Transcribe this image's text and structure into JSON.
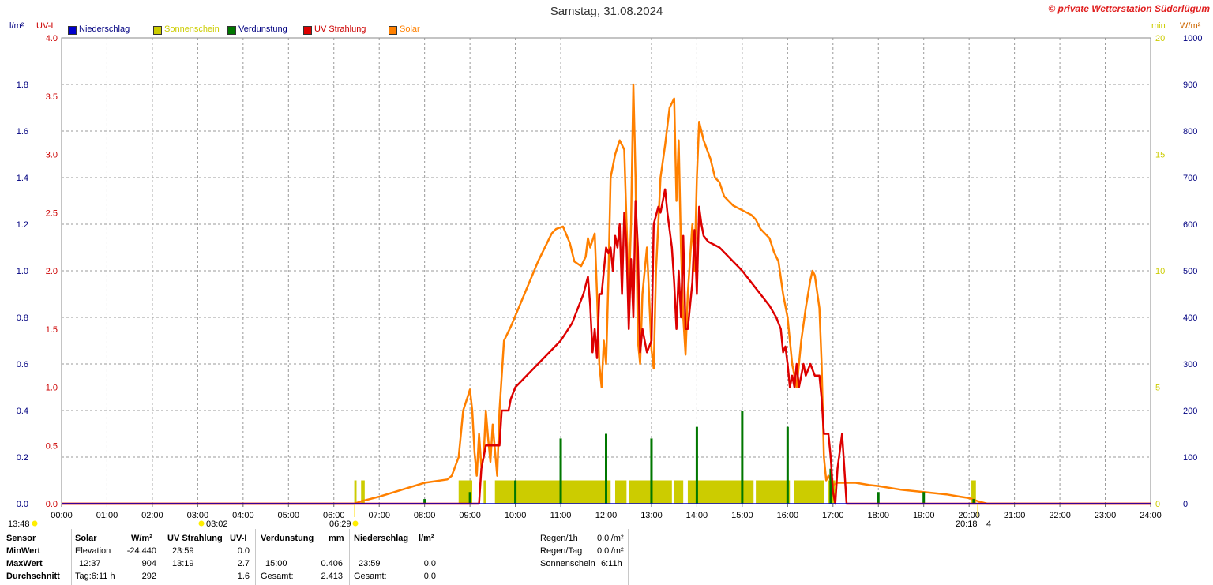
{
  "header": {
    "title": "Samstag, 31.08.2024",
    "copyright": "© private Wetterstation Süderlügum"
  },
  "axis_units": {
    "left_outer": "l/m²",
    "left_inner": "UV-I",
    "right_inner": "min",
    "right_outer": "W/m²"
  },
  "legend": [
    {
      "label": "Niederschlag",
      "color": "#0000cc",
      "text_color": "#000080"
    },
    {
      "label": "Sonnenschein",
      "color": "#cccc00",
      "text_color": "#cccc00"
    },
    {
      "label": "Verdunstung",
      "color": "#007700",
      "text_color": "#000080"
    },
    {
      "label": "UV Strahlung",
      "color": "#dd0000",
      "text_color": "#cc0000"
    },
    {
      "label": "Solar",
      "color": "#ff8000",
      "text_color": "#ff8000"
    }
  ],
  "markers": {
    "moon_left": "13:48",
    "moonset": "03:02",
    "sunrise": "06:29",
    "sunset": "20:18",
    "moon_phase": "4"
  },
  "chart_data": {
    "type": "line",
    "title": "Samstag, 31.08.2024",
    "x_ticks": [
      "00:00",
      "01:00",
      "02:00",
      "03:00",
      "04:00",
      "05:00",
      "06:00",
      "07:00",
      "08:00",
      "09:00",
      "10:00",
      "11:00",
      "12:00",
      "13:00",
      "14:00",
      "15:00",
      "16:00",
      "17:00",
      "18:00",
      "19:00",
      "20:00",
      "21:00",
      "22:00",
      "23:00",
      "24:00"
    ],
    "x_range_hours": [
      0,
      24
    ],
    "y_axes": {
      "rain": {
        "unit": "l/m²",
        "range": [
          0,
          2.0
        ],
        "ticks": [
          "0.0",
          "0.2",
          "0.4",
          "0.6",
          "0.8",
          "1.0",
          "1.2",
          "1.4",
          "1.6",
          "1.8"
        ],
        "color": "#000080"
      },
      "uv": {
        "unit": "UV-I",
        "range": [
          0,
          4.0
        ],
        "ticks": [
          "0.0",
          "0.5",
          "1.0",
          "1.5",
          "2.0",
          "2.5",
          "3.0",
          "3.5",
          "4.0"
        ],
        "color": "#cc0000"
      },
      "sun_min": {
        "unit": "min",
        "range": [
          0,
          20
        ],
        "ticks": [
          "0",
          "5",
          "10",
          "15",
          "20"
        ],
        "color": "#cccc00"
      },
      "solar": {
        "unit": "W/m²",
        "range": [
          0,
          1000
        ],
        "ticks": [
          "0",
          "100",
          "200",
          "300",
          "400",
          "500",
          "600",
          "700",
          "800",
          "900",
          "1000"
        ],
        "color": "#000080"
      }
    },
    "grid": true,
    "series": [
      {
        "name": "Solar",
        "axis": "solar",
        "color": "#ff8000",
        "points": [
          [
            0,
            0
          ],
          [
            6.45,
            0
          ],
          [
            6.6,
            5
          ],
          [
            7.0,
            15
          ],
          [
            7.5,
            30
          ],
          [
            8.0,
            45
          ],
          [
            8.5,
            52
          ],
          [
            8.6,
            60
          ],
          [
            8.75,
            100
          ],
          [
            8.85,
            200
          ],
          [
            8.95,
            230
          ],
          [
            9.0,
            245
          ],
          [
            9.05,
            200
          ],
          [
            9.1,
            110
          ],
          [
            9.15,
            60
          ],
          [
            9.2,
            150
          ],
          [
            9.25,
            80
          ],
          [
            9.3,
            100
          ],
          [
            9.35,
            200
          ],
          [
            9.4,
            140
          ],
          [
            9.45,
            90
          ],
          [
            9.5,
            170
          ],
          [
            9.6,
            60
          ],
          [
            9.65,
            200
          ],
          [
            9.75,
            350
          ],
          [
            9.9,
            380
          ],
          [
            10.2,
            450
          ],
          [
            10.5,
            520
          ],
          [
            10.8,
            580
          ],
          [
            10.9,
            590
          ],
          [
            11.05,
            595
          ],
          [
            11.2,
            560
          ],
          [
            11.3,
            520
          ],
          [
            11.45,
            510
          ],
          [
            11.55,
            530
          ],
          [
            11.6,
            570
          ],
          [
            11.65,
            550
          ],
          [
            11.75,
            580
          ],
          [
            11.8,
            450
          ],
          [
            11.85,
            300
          ],
          [
            11.9,
            250
          ],
          [
            11.95,
            350
          ],
          [
            12.0,
            300
          ],
          [
            12.05,
            480
          ],
          [
            12.1,
            700
          ],
          [
            12.2,
            750
          ],
          [
            12.3,
            780
          ],
          [
            12.4,
            760
          ],
          [
            12.45,
            600
          ],
          [
            12.5,
            450
          ],
          [
            12.55,
            600
          ],
          [
            12.6,
            900
          ],
          [
            12.65,
            700
          ],
          [
            12.7,
            350
          ],
          [
            12.75,
            300
          ],
          [
            12.8,
            450
          ],
          [
            12.9,
            550
          ],
          [
            13.0,
            330
          ],
          [
            13.05,
            290
          ],
          [
            13.1,
            500
          ],
          [
            13.2,
            700
          ],
          [
            13.3,
            770
          ],
          [
            13.4,
            850
          ],
          [
            13.5,
            870
          ],
          [
            13.55,
            650
          ],
          [
            13.6,
            780
          ],
          [
            13.65,
            550
          ],
          [
            13.7,
            400
          ],
          [
            13.75,
            320
          ],
          [
            13.8,
            450
          ],
          [
            13.9,
            600
          ],
          [
            13.95,
            500
          ],
          [
            14.0,
            700
          ],
          [
            14.05,
            820
          ],
          [
            14.15,
            780
          ],
          [
            14.3,
            740
          ],
          [
            14.4,
            700
          ],
          [
            14.5,
            690
          ],
          [
            14.6,
            660
          ],
          [
            14.7,
            650
          ],
          [
            14.8,
            640
          ],
          [
            15.0,
            630
          ],
          [
            15.2,
            620
          ],
          [
            15.3,
            610
          ],
          [
            15.4,
            590
          ],
          [
            15.5,
            580
          ],
          [
            15.6,
            570
          ],
          [
            15.7,
            540
          ],
          [
            15.8,
            520
          ],
          [
            15.9,
            450
          ],
          [
            16.0,
            400
          ],
          [
            16.1,
            300
          ],
          [
            16.2,
            250
          ],
          [
            16.3,
            350
          ],
          [
            16.4,
            420
          ],
          [
            16.5,
            480
          ],
          [
            16.55,
            500
          ],
          [
            16.6,
            490
          ],
          [
            16.7,
            420
          ],
          [
            16.75,
            300
          ],
          [
            16.8,
            100
          ],
          [
            16.85,
            50
          ],
          [
            16.9,
            60
          ],
          [
            17.0,
            40
          ],
          [
            17.1,
            45
          ],
          [
            17.5,
            45
          ],
          [
            17.8,
            40
          ],
          [
            18.0,
            38
          ],
          [
            18.5,
            30
          ],
          [
            19.0,
            25
          ],
          [
            19.5,
            20
          ],
          [
            19.8,
            15
          ],
          [
            20.0,
            12
          ],
          [
            20.2,
            5
          ],
          [
            20.4,
            0
          ],
          [
            24,
            0
          ]
        ]
      },
      {
        "name": "UV Strahlung",
        "axis": "uv",
        "color": "#dd0000",
        "points": [
          [
            0,
            0
          ],
          [
            9.2,
            0
          ],
          [
            9.25,
            0.3
          ],
          [
            9.35,
            0.5
          ],
          [
            9.65,
            0.5
          ],
          [
            9.7,
            0.8
          ],
          [
            9.85,
            0.8
          ],
          [
            9.9,
            0.9
          ],
          [
            10.0,
            1.0
          ],
          [
            10.25,
            1.1
          ],
          [
            10.5,
            1.2
          ],
          [
            10.75,
            1.3
          ],
          [
            11.0,
            1.4
          ],
          [
            11.25,
            1.55
          ],
          [
            11.4,
            1.7
          ],
          [
            11.5,
            1.8
          ],
          [
            11.6,
            1.95
          ],
          [
            11.65,
            1.7
          ],
          [
            11.7,
            1.3
          ],
          [
            11.75,
            1.5
          ],
          [
            11.8,
            1.25
          ],
          [
            11.85,
            1.8
          ],
          [
            11.9,
            1.8
          ],
          [
            12.0,
            2.2
          ],
          [
            12.05,
            2.15
          ],
          [
            12.1,
            2.2
          ],
          [
            12.15,
            2.0
          ],
          [
            12.2,
            2.3
          ],
          [
            12.25,
            2.2
          ],
          [
            12.3,
            2.4
          ],
          [
            12.35,
            1.8
          ],
          [
            12.4,
            2.5
          ],
          [
            12.45,
            2.2
          ],
          [
            12.5,
            1.5
          ],
          [
            12.55,
            2.1
          ],
          [
            12.6,
            1.6
          ],
          [
            12.65,
            2.6
          ],
          [
            12.7,
            2.2
          ],
          [
            12.75,
            1.3
          ],
          [
            12.8,
            1.5
          ],
          [
            12.9,
            1.3
          ],
          [
            13.0,
            1.4
          ],
          [
            13.05,
            2.4
          ],
          [
            13.15,
            2.55
          ],
          [
            13.2,
            2.5
          ],
          [
            13.3,
            2.7
          ],
          [
            13.35,
            2.5
          ],
          [
            13.45,
            2.2
          ],
          [
            13.5,
            1.9
          ],
          [
            13.55,
            1.5
          ],
          [
            13.6,
            2.0
          ],
          [
            13.65,
            1.6
          ],
          [
            13.7,
            2.3
          ],
          [
            13.75,
            1.5
          ],
          [
            13.8,
            1.5
          ],
          [
            13.9,
            1.9
          ],
          [
            13.95,
            2.35
          ],
          [
            14.0,
            1.8
          ],
          [
            14.05,
            2.55
          ],
          [
            14.1,
            2.4
          ],
          [
            14.15,
            2.3
          ],
          [
            14.25,
            2.25
          ],
          [
            14.5,
            2.2
          ],
          [
            14.75,
            2.1
          ],
          [
            15.0,
            2.0
          ],
          [
            15.2,
            1.9
          ],
          [
            15.4,
            1.8
          ],
          [
            15.5,
            1.75
          ],
          [
            15.6,
            1.7
          ],
          [
            15.75,
            1.6
          ],
          [
            15.85,
            1.5
          ],
          [
            15.9,
            1.3
          ],
          [
            15.95,
            1.35
          ],
          [
            16.0,
            1.2
          ],
          [
            16.05,
            1.0
          ],
          [
            16.1,
            1.1
          ],
          [
            16.15,
            1.0
          ],
          [
            16.2,
            1.2
          ],
          [
            16.25,
            1.0
          ],
          [
            16.3,
            1.1
          ],
          [
            16.35,
            1.2
          ],
          [
            16.4,
            1.1
          ],
          [
            16.5,
            1.2
          ],
          [
            16.6,
            1.1
          ],
          [
            16.7,
            1.1
          ],
          [
            16.75,
            0.9
          ],
          [
            16.8,
            0.6
          ],
          [
            16.9,
            0.6
          ],
          [
            16.95,
            0.4
          ],
          [
            17.0,
            0.1
          ],
          [
            17.05,
            0.0
          ],
          [
            17.1,
            0.3
          ],
          [
            17.2,
            0.6
          ],
          [
            17.25,
            0.3
          ],
          [
            17.3,
            0.0
          ],
          [
            24,
            0
          ]
        ]
      }
    ],
    "bars": [
      {
        "name": "Sonnenschein",
        "axis": "sun_min",
        "color": "#cccc00",
        "intervals": [
          [
            6.45,
            6.5
          ],
          [
            6.6,
            6.68
          ],
          [
            8.75,
            9.05
          ],
          [
            9.3,
            9.35
          ],
          [
            9.55,
            12.1
          ],
          [
            12.2,
            12.45
          ],
          [
            12.5,
            13.45
          ],
          [
            13.5,
            13.7
          ],
          [
            13.8,
            15.25
          ],
          [
            15.3,
            16.05
          ],
          [
            16.15,
            16.8
          ],
          [
            16.9,
            17.05
          ],
          [
            20.05,
            20.15
          ]
        ],
        "values": [
          1,
          1,
          1,
          1,
          1,
          1,
          1,
          1,
          1,
          1,
          1,
          1,
          1
        ]
      },
      {
        "name": "Verdunstung",
        "axis": "rain",
        "color": "#007700",
        "spikes": [
          [
            8.0,
            0.02
          ],
          [
            9.0,
            0.05
          ],
          [
            10.0,
            0.1
          ],
          [
            11.0,
            0.28
          ],
          [
            12.0,
            0.3
          ],
          [
            13.0,
            0.28
          ],
          [
            14.0,
            0.33
          ],
          [
            15.0,
            0.4
          ],
          [
            16.0,
            0.33
          ],
          [
            16.95,
            0.15
          ],
          [
            18.0,
            0.05
          ],
          [
            19.0,
            0.05
          ],
          [
            20.1,
            0.02
          ]
        ]
      },
      {
        "name": "Niederschlag",
        "axis": "rain",
        "color": "#0000cc",
        "spikes": []
      }
    ]
  },
  "stats": {
    "headers": {
      "sensor": "Sensor",
      "solar": "Solar",
      "solar_unit": "W/m²",
      "uv": "UV Strahlung",
      "uv_unit": "UV-I",
      "evap": "Verdunstung",
      "evap_unit": "mm",
      "rain": "Niederschlag",
      "rain_unit": "l/m²"
    },
    "rows": [
      {
        "label": "MinWert",
        "solar_time": "Elevation",
        "solar_val": "-24.440",
        "uv_time": "23:59",
        "uv_val": "0.0",
        "evap_time": "",
        "evap_val": "",
        "rain_time": "",
        "rain_val": ""
      },
      {
        "label": "MaxWert",
        "solar_time": "12:37",
        "solar_val": "904",
        "uv_time": "13:19",
        "uv_val": "2.7",
        "evap_time": "15:00",
        "evap_val": "0.406",
        "rain_time": "23:59",
        "rain_val": "0.0"
      },
      {
        "label": "Durchschnitt",
        "solar_time": "Tag:6:11 h",
        "solar_val": "292",
        "uv_time": "",
        "uv_val": "1.6",
        "evap_time": "Gesamt:",
        "evap_val": "2.413",
        "rain_time": "Gesamt:",
        "rain_val": "0.0"
      }
    ],
    "extra": [
      {
        "label": "Regen/1h",
        "value": "0.0l/m²"
      },
      {
        "label": "Regen/Tag",
        "value": "0.0l/m²"
      },
      {
        "label": "Sonnenschein",
        "value": "6:11h"
      }
    ]
  }
}
